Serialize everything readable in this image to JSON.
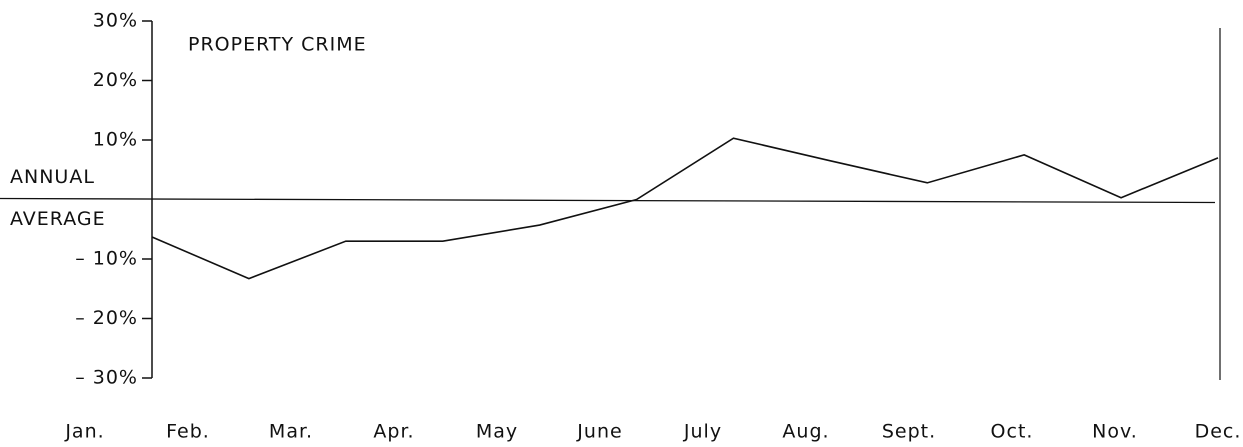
{
  "chart_data": {
    "type": "line",
    "title": "PROPERTY CRIME",
    "reference_label": [
      "ANNUAL",
      "AVERAGE"
    ],
    "categories": [
      "Jan.",
      "Feb.",
      "Mar.",
      "Apr.",
      "May",
      "June",
      "July",
      "Aug.",
      "Sept.",
      "Oct.",
      "Nov.",
      "Dec."
    ],
    "values": [
      -6.3,
      -13.3,
      -7,
      -7,
      -4.3,
      0,
      10.3,
      6.5,
      2.8,
      7.5,
      0.3,
      7
    ],
    "color": "#111111",
    "ylim": [
      -30,
      30
    ],
    "yticks": [
      {
        "value": 30,
        "label": "30%"
      },
      {
        "value": 20,
        "label": "20%"
      },
      {
        "value": 10,
        "label": "10%"
      },
      {
        "value": -10,
        "label": "– 10%"
      },
      {
        "value": -20,
        "label": "– 20%"
      },
      {
        "value": -30,
        "label": "– 30%"
      }
    ],
    "grid": false
  }
}
